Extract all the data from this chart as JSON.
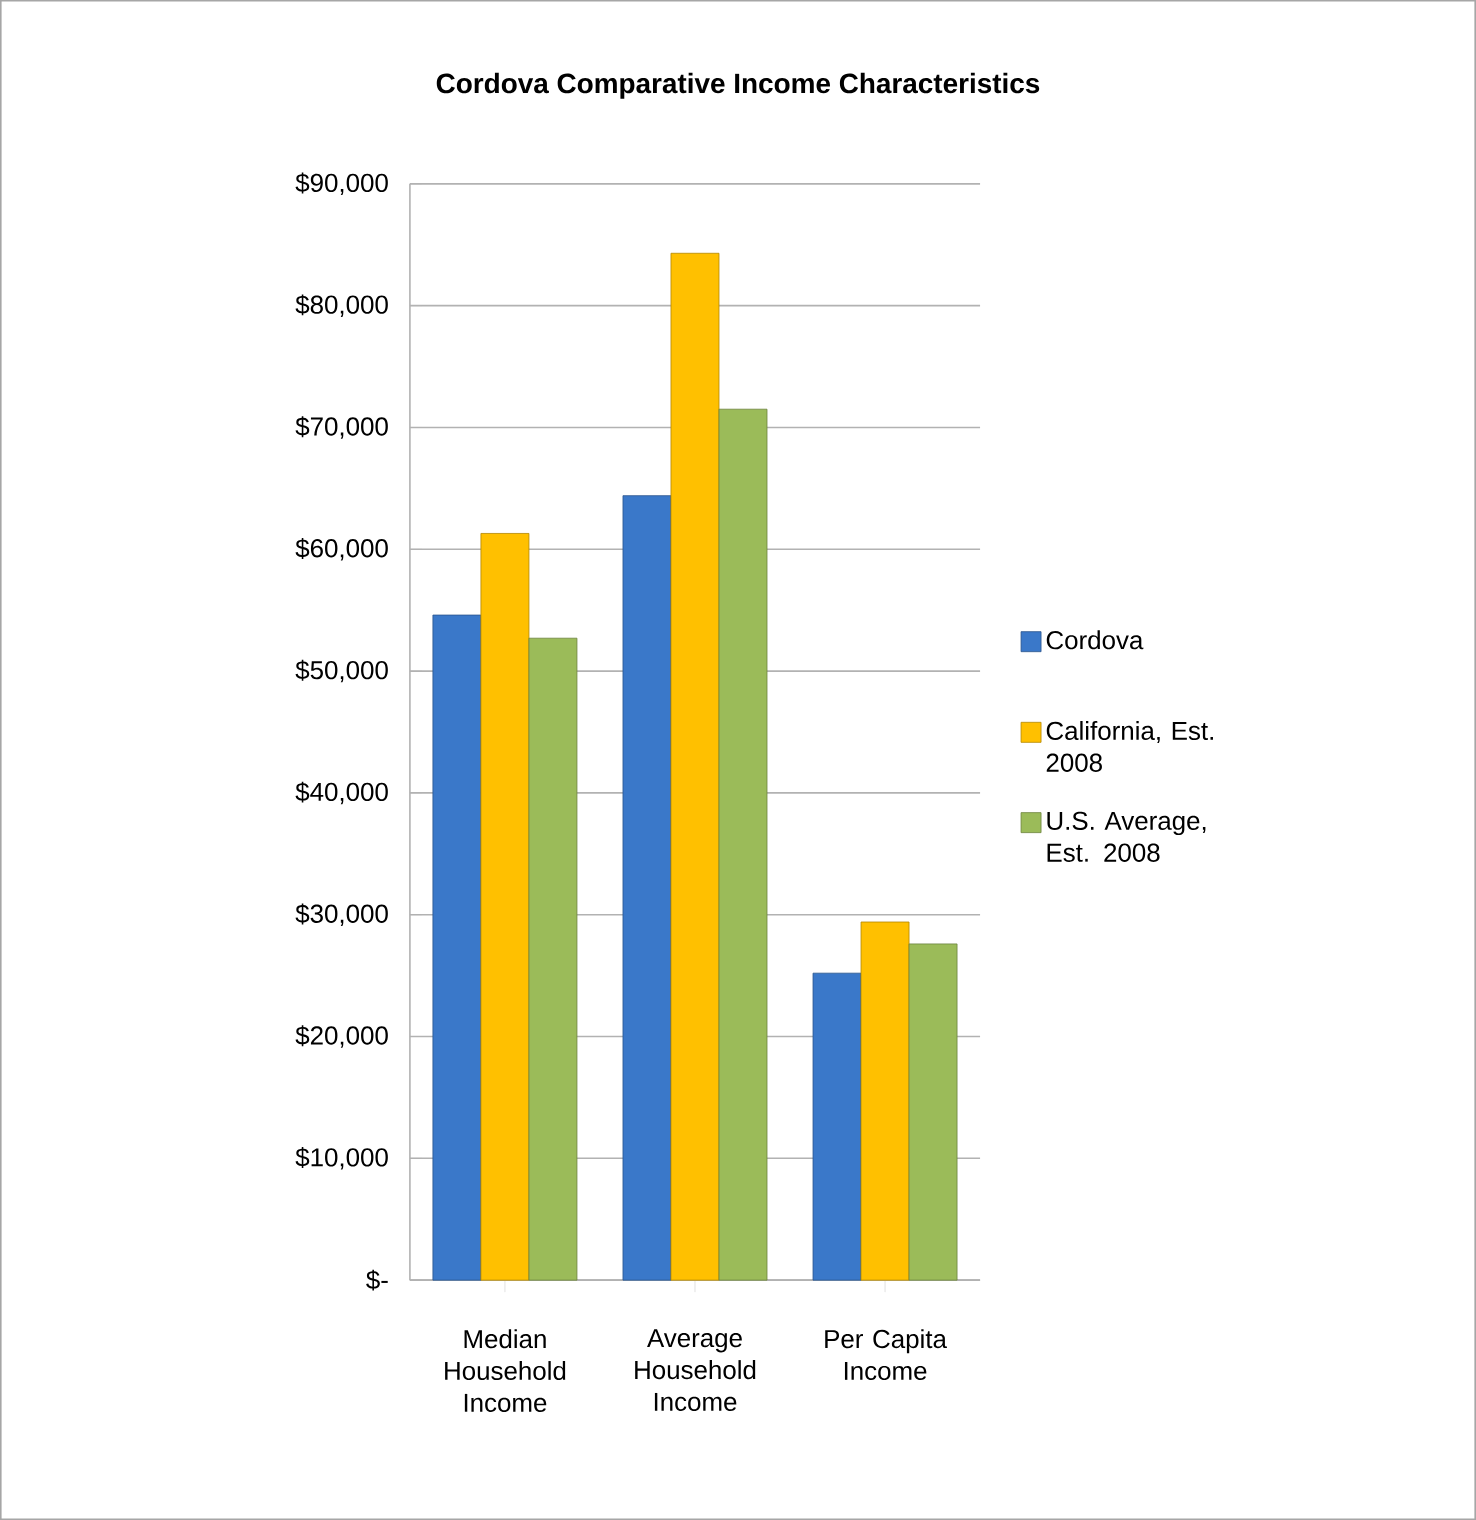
{
  "chart_data": {
    "type": "bar",
    "title": "Cordova Comparative Income Characteristics",
    "categories": [
      "Median Household Income",
      "Average Household Income",
      "Per Capita Income"
    ],
    "series": [
      {
        "name": "Cordova",
        "color": "#3a78c9",
        "values": [
          54600,
          64400,
          25200
        ]
      },
      {
        "name": "California, Est. 2008",
        "color": "#ffc000",
        "values": [
          61300,
          84300,
          29400
        ]
      },
      {
        "name": "U.S. Average, Est. 2008",
        "color": "#9bbb59",
        "values": [
          52700,
          71500,
          27600
        ]
      }
    ],
    "ylim": [
      0,
      90000
    ],
    "yticks": [
      {
        "value": 0,
        "label": "$-"
      },
      {
        "value": 10000,
        "label": "$10,000"
      },
      {
        "value": 20000,
        "label": "$20,000"
      },
      {
        "value": 30000,
        "label": "$30,000"
      },
      {
        "value": 40000,
        "label": "$40,000"
      },
      {
        "value": 50000,
        "label": "$50,000"
      },
      {
        "value": 60000,
        "label": "$60,000"
      },
      {
        "value": 70000,
        "label": "$70,000"
      },
      {
        "value": 80000,
        "label": "$80,000"
      },
      {
        "value": 90000,
        "label": "$90,000"
      }
    ],
    "grid": "y",
    "legend": "right"
  }
}
